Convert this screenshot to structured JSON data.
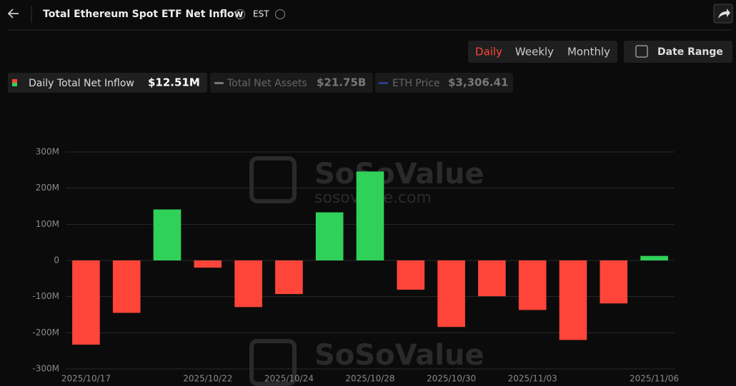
{
  "header": {
    "title": "Total Ethereum Spot ETF Net Inflow",
    "timezone": "EST"
  },
  "controls": {
    "periods": [
      "Daily",
      "Weekly",
      "Monthly"
    ],
    "date_range": "Date Range"
  },
  "legend_items": [
    {
      "name": "Daily Total Net Inflow",
      "value": "$12.51M"
    },
    {
      "name": "Total Net Assets",
      "value": "$21.75B"
    },
    {
      "name": "ETH Price",
      "value": "$3,306.41"
    }
  ],
  "watermark": {
    "brand": "SoSoValue",
    "site": "sosovalue.com"
  },
  "chart_data": {
    "type": "bar",
    "categories": [
      "2025/10/17",
      null,
      null,
      "2025/10/22",
      null,
      "2025/10/24",
      null,
      "2025/10/28",
      null,
      "2025/10/30",
      null,
      "2025/11/03",
      null,
      null,
      "2025/11/06"
    ],
    "values": [
      -233,
      -145,
      141,
      -20,
      -129,
      -93,
      133,
      246,
      -81,
      -184,
      -99,
      -137,
      -220,
      -119,
      12.51
    ],
    "positive_color": "#30d158",
    "negative_color": "#ff453a",
    "ylim": [
      -300,
      300
    ],
    "yticks": [
      {
        "value": -300,
        "label": "-300M"
      },
      {
        "value": -200,
        "label": "-200M"
      },
      {
        "value": -100,
        "label": "-100M"
      },
      0,
      {
        "value": 100,
        "label": "100M"
      },
      {
        "value": 200,
        "label": "200M"
      },
      {
        "value": 300,
        "label": "300M"
      }
    ],
    "grid": true
  }
}
